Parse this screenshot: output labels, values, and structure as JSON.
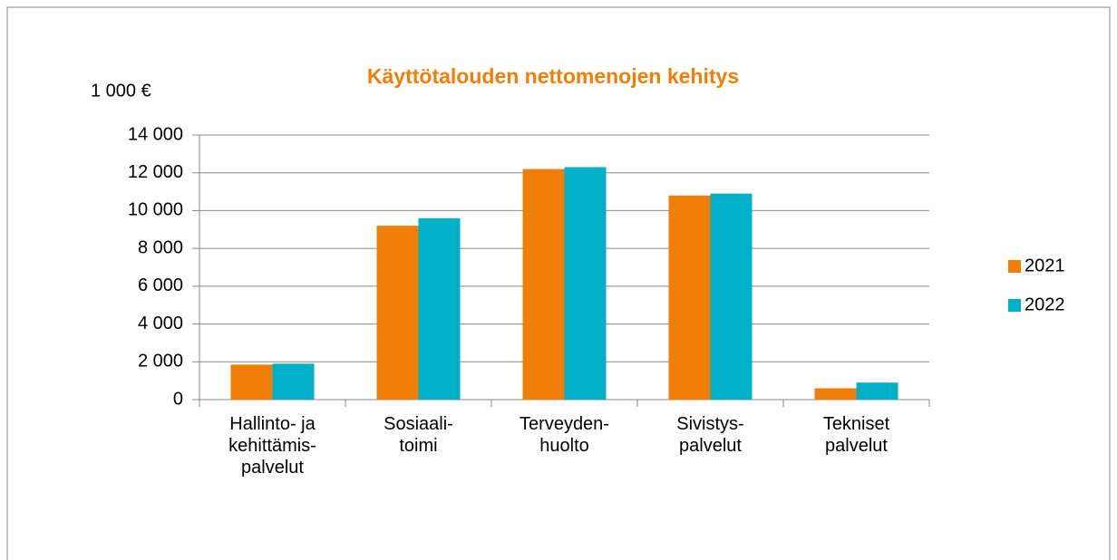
{
  "chart_data": {
    "type": "bar",
    "title": "Käyttötalouden nettomenojen kehitys",
    "y_axis_label": "1 000 €",
    "categories": [
      "Hallinto- ja\nkehittämis-\npalvelut",
      "Sosiaali-\ntoimi",
      "Terveyden-\nhuolto",
      "Sivistys-\npalvelut",
      "Tekniset\npalvelut"
    ],
    "series": [
      {
        "name": "2021",
        "color": "#f07f09",
        "values": [
          1850,
          9200,
          12200,
          10800,
          600
        ]
      },
      {
        "name": "2022",
        "color": "#00b0c8",
        "values": [
          1900,
          9600,
          12300,
          10900,
          900
        ]
      }
    ],
    "ylim": [
      0,
      14000
    ],
    "yticks": [
      0,
      {
        "value": 2000,
        "label": "2 000"
      },
      {
        "value": 4000,
        "label": "4 000"
      },
      {
        "value": 6000,
        "label": "6 000"
      },
      {
        "value": 8000,
        "label": "8 000"
      },
      {
        "value": 10000,
        "label": "10 000"
      },
      {
        "value": 12000,
        "label": "12 000"
      },
      {
        "value": 14000,
        "label": "14 000"
      }
    ],
    "grid": true,
    "legend": "right"
  }
}
